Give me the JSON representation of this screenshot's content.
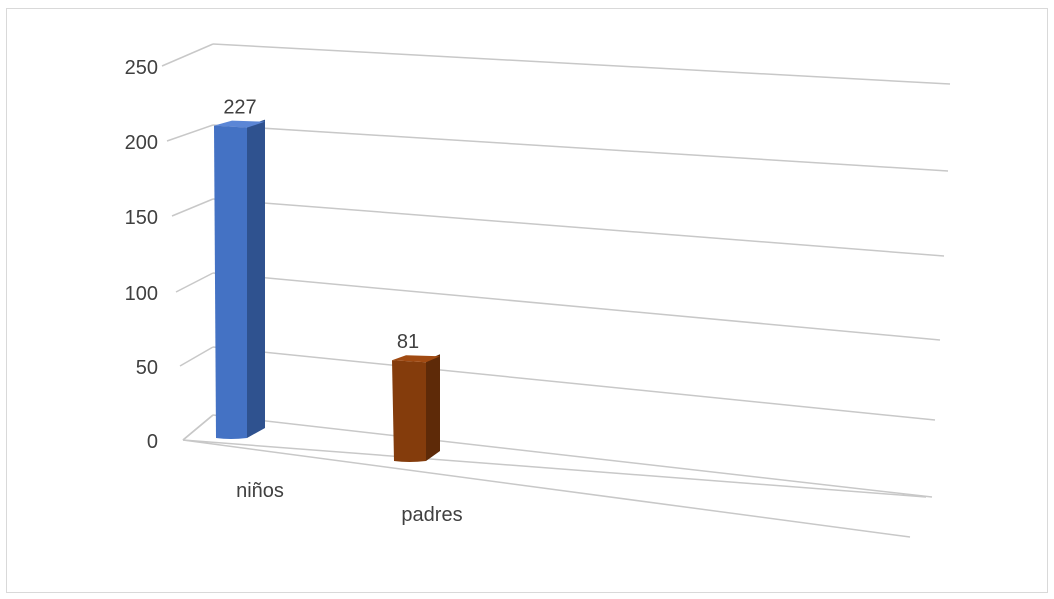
{
  "chart_data": {
    "type": "bar",
    "categories": [
      "niños",
      "padres"
    ],
    "values": [
      227,
      81
    ],
    "ylim": [
      0,
      250
    ],
    "yticks": [
      0,
      50,
      100,
      150,
      200,
      250
    ],
    "grid": true,
    "style": "3d-perspective-column",
    "colors": {
      "niños": {
        "front": "#4472C4",
        "side": "#2F528F",
        "top": "#5B86D6"
      },
      "padres": {
        "front": "#843C0C",
        "side": "#5E2A08",
        "top": "#A04A12"
      },
      "grid": "#C8C8C8",
      "text": "#404040"
    }
  }
}
